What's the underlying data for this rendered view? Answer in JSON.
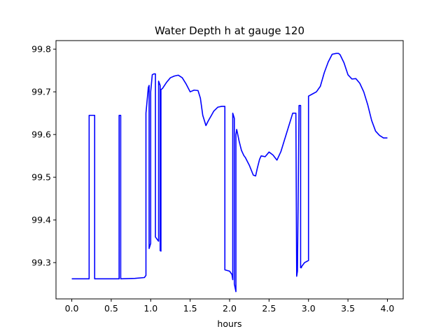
{
  "chart_data": {
    "type": "line",
    "title": "Water Depth h at gauge 120",
    "xlabel": "hours",
    "ylabel": "",
    "xlim": [
      -0.2,
      4.2
    ],
    "ylim": [
      99.215,
      99.82
    ],
    "xticks": [
      0.0,
      0.5,
      1.0,
      1.5,
      2.0,
      2.5,
      3.0,
      3.5,
      4.0
    ],
    "xtick_labels": [
      "0.0",
      "0.5",
      "1.0",
      "1.5",
      "2.0",
      "2.5",
      "3.0",
      "3.5",
      "4.0"
    ],
    "yticks": [
      99.3,
      99.4,
      99.5,
      99.6,
      99.7,
      99.8
    ],
    "ytick_labels": [
      "99.3",
      "99.4",
      "99.5",
      "99.6",
      "99.7",
      "99.8"
    ],
    "grid": false,
    "series": [
      {
        "color": "#0000ff",
        "x": [
          0.0,
          0.22,
          0.22,
          0.29,
          0.29,
          0.6,
          0.6,
          0.62,
          0.62,
          0.8,
          0.92,
          0.94,
          0.94,
          0.97,
          0.98,
          0.98,
          1.0,
          1.0,
          1.02,
          1.04,
          1.06,
          1.06,
          1.1,
          1.1,
          1.12,
          1.12,
          1.13,
          1.13,
          1.15,
          1.2,
          1.25,
          1.3,
          1.35,
          1.4,
          1.45,
          1.5,
          1.55,
          1.6,
          1.63,
          1.66,
          1.7,
          1.73,
          1.77,
          1.8,
          1.85,
          1.9,
          1.94,
          1.94,
          2.0,
          2.03,
          2.04,
          2.04,
          2.06,
          2.06,
          2.08,
          2.08,
          2.09,
          2.09,
          2.12,
          2.15,
          2.18,
          2.2,
          2.25,
          2.3,
          2.33,
          2.35,
          2.38,
          2.4,
          2.45,
          2.5,
          2.55,
          2.6,
          2.65,
          2.7,
          2.75,
          2.8,
          2.84,
          2.85,
          2.85,
          2.86,
          2.88,
          2.88,
          2.9,
          2.9,
          2.91,
          2.91,
          2.95,
          3.0,
          3.0,
          3.05,
          3.1,
          3.15,
          3.2,
          3.25,
          3.3,
          3.35,
          3.38,
          3.4,
          3.45,
          3.5,
          3.55,
          3.6,
          3.65,
          3.7,
          3.75,
          3.8,
          3.85,
          3.9,
          3.95,
          4.0
        ],
        "y": [
          99.262,
          99.262,
          99.645,
          99.645,
          99.262,
          99.262,
          99.645,
          99.645,
          99.262,
          99.263,
          99.265,
          99.27,
          99.65,
          99.71,
          99.715,
          99.333,
          99.345,
          99.7,
          99.74,
          99.742,
          99.742,
          99.36,
          99.35,
          99.725,
          99.715,
          99.328,
          99.327,
          99.705,
          99.708,
          99.722,
          99.733,
          99.737,
          99.739,
          99.733,
          99.718,
          99.7,
          99.704,
          99.703,
          99.685,
          99.645,
          99.621,
          99.632,
          99.645,
          99.655,
          99.664,
          99.666,
          99.666,
          99.283,
          99.28,
          99.272,
          99.26,
          99.65,
          99.638,
          99.25,
          99.232,
          99.6,
          99.612,
          99.612,
          99.585,
          99.563,
          99.551,
          99.546,
          99.528,
          99.505,
          99.503,
          99.52,
          99.542,
          99.55,
          99.548,
          99.559,
          99.552,
          99.54,
          99.56,
          99.59,
          99.62,
          99.65,
          99.65,
          99.27,
          99.268,
          99.28,
          99.665,
          99.668,
          99.668,
          99.288,
          99.288,
          99.29,
          99.3,
          99.305,
          99.69,
          99.695,
          99.7,
          99.713,
          99.745,
          99.77,
          99.788,
          99.79,
          99.79,
          99.787,
          99.768,
          99.74,
          99.73,
          99.731,
          99.72,
          99.7,
          99.67,
          99.633,
          99.608,
          99.598,
          99.592,
          99.592
        ]
      }
    ]
  }
}
